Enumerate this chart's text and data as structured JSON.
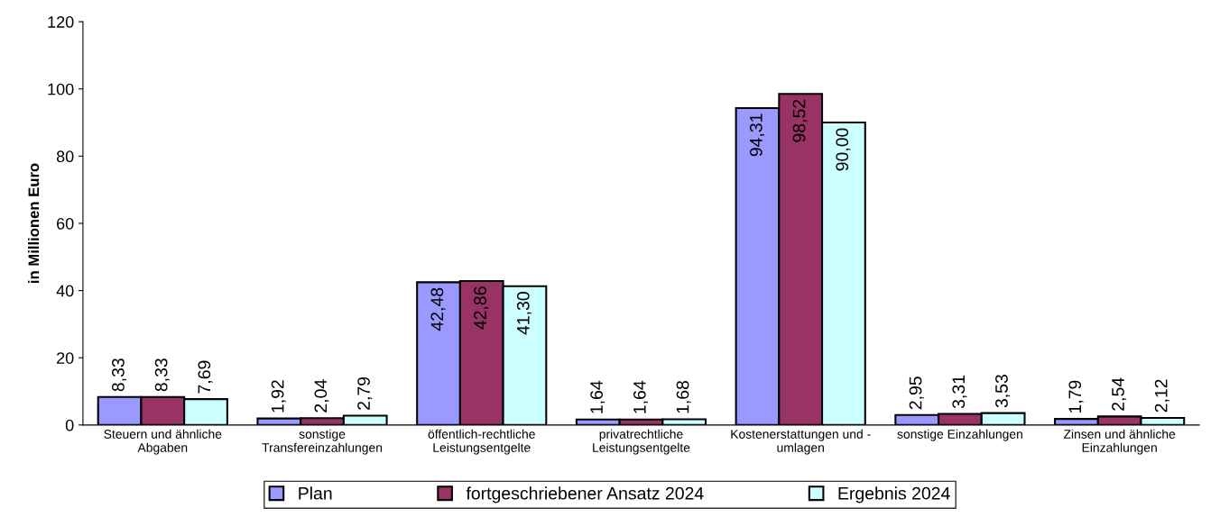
{
  "chart_data": {
    "type": "bar",
    "ylabel": "in Millionen Euro",
    "categories": [
      "Steuern und ähnliche\nAbgaben",
      "sonstige\nTransfereinzahlungen",
      "öffentlich-rechtliche\nLeistungsentgelte",
      "privatrechtliche\nLeistungsentgelte",
      "Kostenerstattungen und -\numlagen",
      "sonstige Einzahlungen",
      "Zinsen und ähnliche\nEinzahlungen"
    ],
    "series": [
      {
        "name": "Plan",
        "color": "#9999ff",
        "values": [
          8.33,
          1.92,
          42.48,
          1.64,
          94.31,
          2.95,
          1.79
        ],
        "value_labels": [
          "8,33",
          "1,92",
          "42,48",
          "1,64",
          "94,31",
          "2,95",
          "1,79"
        ]
      },
      {
        "name": "fortgeschriebener Ansatz 2024",
        "color": "#993366",
        "values": [
          8.33,
          2.04,
          42.86,
          1.64,
          98.52,
          3.31,
          2.54
        ],
        "value_labels": [
          "8,33",
          "2,04",
          "42,86",
          "1,64",
          "98,52",
          "3,31",
          "2,54"
        ]
      },
      {
        "name": "Ergebnis 2024",
        "color": "#ccffff",
        "values": [
          7.69,
          2.79,
          41.3,
          1.68,
          90.0,
          3.53,
          2.12
        ],
        "value_labels": [
          "7,69",
          "2,79",
          "41,30",
          "1,68",
          "90,00",
          "3,53",
          "2,12"
        ]
      }
    ],
    "ylim": [
      0,
      120
    ],
    "yticks": [
      0,
      20,
      40,
      60,
      80,
      100,
      120
    ],
    "grid": false,
    "legend": "bottom"
  }
}
